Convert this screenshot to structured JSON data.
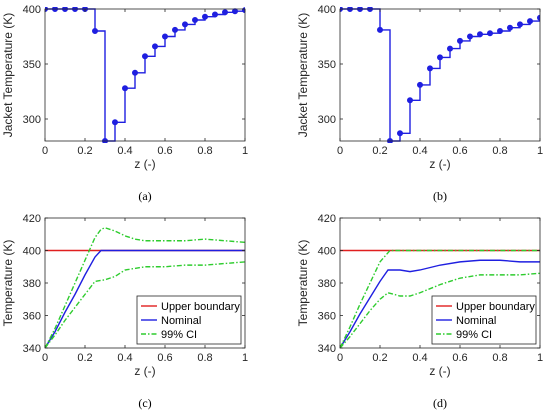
{
  "colors": {
    "profile": "#1f1fe0",
    "upper": "#e01f1f",
    "nominal": "#1f1fe0",
    "ci": "#2ecc2e",
    "axis": "#262626"
  },
  "chart_data": [
    {
      "id": "a",
      "caption": "(a)",
      "type": "line",
      "xlabel": "z (-)",
      "ylabel": "Jacket Temperature (K)",
      "xlim": [
        0,
        1
      ],
      "ylim": [
        280,
        400
      ],
      "xticks": [
        "0",
        "0.2",
        "0.4",
        "0.6",
        "0.8",
        "1"
      ],
      "yticks": [
        "300",
        "350",
        "400"
      ],
      "grid": false,
      "series": [
        {
          "style": "stairs-markers",
          "x": [
            0,
            0.05,
            0.1,
            0.15,
            0.2,
            0.25,
            0.3,
            0.35,
            0.4,
            0.45,
            0.5,
            0.55,
            0.6,
            0.65,
            0.7,
            0.75,
            0.8,
            0.85,
            0.9,
            0.95,
            1.0
          ],
          "y": [
            400,
            400,
            400,
            400,
            400,
            380,
            280,
            297,
            328,
            342,
            357,
            366,
            375,
            381,
            386,
            390,
            393,
            395,
            397,
            398,
            399
          ]
        }
      ]
    },
    {
      "id": "b",
      "caption": "(b)",
      "type": "line",
      "xlabel": "z (-)",
      "ylabel": "Jacket Temperature (K)",
      "xlim": [
        0,
        1
      ],
      "ylim": [
        280,
        400
      ],
      "xticks": [
        "0",
        "0.2",
        "0.4",
        "0.6",
        "0.8",
        "1"
      ],
      "yticks": [
        "300",
        "350",
        "400"
      ],
      "grid": false,
      "series": [
        {
          "style": "stairs-markers",
          "x": [
            0,
            0.05,
            0.1,
            0.15,
            0.2,
            0.25,
            0.3,
            0.35,
            0.4,
            0.45,
            0.5,
            0.55,
            0.6,
            0.65,
            0.7,
            0.75,
            0.8,
            0.85,
            0.9,
            0.95,
            1.0
          ],
          "y": [
            400,
            400,
            400,
            400,
            381,
            280,
            287,
            317,
            331,
            346,
            356,
            364,
            371,
            375,
            377,
            378,
            380,
            383,
            386,
            389,
            392
          ]
        }
      ]
    },
    {
      "id": "c",
      "caption": "(c)",
      "type": "line",
      "xlabel": "z (-)",
      "ylabel": "Temperature (K)",
      "xlim": [
        0,
        1
      ],
      "ylim": [
        340,
        420
      ],
      "xticks": [
        "0",
        "0.2",
        "0.4",
        "0.6",
        "0.8",
        "1"
      ],
      "yticks": [
        "340",
        "360",
        "380",
        "400",
        "420"
      ],
      "grid": false,
      "legend": "bottom-right",
      "series": [
        {
          "name": "Upper boundary",
          "role": "upper",
          "x": [
            0,
            1
          ],
          "y": [
            400,
            400
          ]
        },
        {
          "name": "Nominal",
          "role": "nominal",
          "x": [
            0,
            0.05,
            0.1,
            0.15,
            0.2,
            0.25,
            0.28,
            0.3,
            0.35,
            0.4,
            0.5,
            0.6,
            0.7,
            0.8,
            0.9,
            1.0
          ],
          "y": [
            340,
            350,
            362,
            373,
            385,
            396,
            400,
            400,
            400,
            400,
            400,
            400,
            400,
            400,
            400,
            400
          ]
        },
        {
          "name": "99% CI",
          "role": "ci",
          "x": [
            0,
            0.05,
            0.1,
            0.15,
            0.2,
            0.25,
            0.28,
            0.3,
            0.35,
            0.4,
            0.45,
            0.5,
            0.6,
            0.7,
            0.8,
            0.9,
            1.0
          ],
          "y": [
            340,
            352,
            366,
            380,
            394,
            408,
            413,
            414,
            412,
            409,
            407,
            406,
            406,
            406,
            407,
            406,
            405
          ]
        },
        {
          "name": "",
          "role": "ci",
          "x": [
            0,
            0.05,
            0.1,
            0.15,
            0.2,
            0.25,
            0.3,
            0.35,
            0.4,
            0.5,
            0.6,
            0.7,
            0.8,
            0.9,
            1.0
          ],
          "y": [
            340,
            348,
            357,
            365,
            373,
            381,
            382,
            384,
            388,
            390,
            390,
            391,
            391,
            392,
            393
          ]
        }
      ]
    },
    {
      "id": "d",
      "caption": "(d)",
      "type": "line",
      "xlabel": "z (-)",
      "ylabel": "Temperature (K)",
      "xlim": [
        0,
        1
      ],
      "ylim": [
        340,
        420
      ],
      "xticks": [
        "0",
        "0.2",
        "0.4",
        "0.6",
        "0.8",
        "1"
      ],
      "yticks": [
        "340",
        "360",
        "380",
        "400",
        "420"
      ],
      "grid": false,
      "legend": "bottom-right",
      "series": [
        {
          "name": "Upper boundary",
          "role": "upper",
          "x": [
            0,
            1
          ],
          "y": [
            400,
            400
          ]
        },
        {
          "name": "Nominal",
          "role": "nominal",
          "x": [
            0,
            0.05,
            0.1,
            0.15,
            0.2,
            0.24,
            0.3,
            0.35,
            0.4,
            0.5,
            0.6,
            0.7,
            0.8,
            0.9,
            1.0
          ],
          "y": [
            340,
            350,
            361,
            371,
            381,
            388,
            388,
            387,
            388,
            391,
            393,
            394,
            394,
            393,
            393
          ]
        },
        {
          "name": "99% CI",
          "role": "ci",
          "x": [
            0,
            0.05,
            0.1,
            0.15,
            0.2,
            0.25,
            0.3,
            0.4,
            0.5,
            0.6,
            0.7,
            0.8,
            0.9,
            1.0
          ],
          "y": [
            340,
            353,
            367,
            380,
            393,
            400,
            400,
            400,
            400,
            400,
            400,
            400,
            400,
            400
          ]
        },
        {
          "name": "",
          "role": "ci",
          "x": [
            0,
            0.05,
            0.1,
            0.15,
            0.2,
            0.24,
            0.3,
            0.35,
            0.4,
            0.5,
            0.6,
            0.7,
            0.8,
            0.9,
            1.0
          ],
          "y": [
            340,
            347,
            355,
            363,
            370,
            374,
            372,
            372,
            374,
            379,
            383,
            385,
            385,
            385,
            386
          ]
        }
      ]
    }
  ]
}
